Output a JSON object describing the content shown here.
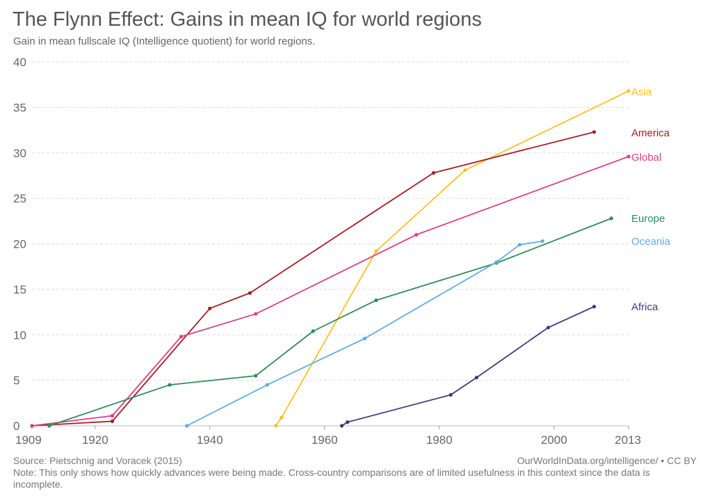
{
  "title": "The Flynn Effect: Gains in mean IQ for world regions",
  "subtitle": "Gain in mean fullscale IQ (Intelligence quotient) for world regions.",
  "footer": {
    "source": "Source: Pietschnig and Voracek (2015)",
    "url": "OurWorldInData.org/intelligence/ • CC BY",
    "note": "Note: This only shows how quickly advances were being made. Cross-country comparisons are of limited usefulness in this context since the data is incomplete."
  },
  "chart_data": {
    "type": "line",
    "title": "The Flynn Effect: Gains in mean IQ for world regions",
    "xlabel": "",
    "ylabel": "",
    "xlim": [
      1909,
      2013
    ],
    "ylim": [
      0,
      40
    ],
    "x_ticks": [
      "1909",
      "1920",
      "1940",
      "1960",
      "1980",
      "2000",
      "2013"
    ],
    "y_ticks": [
      "0",
      "5",
      "10",
      "15",
      "20",
      "25",
      "30",
      "35",
      "40"
    ],
    "x_tick_values": [
      1909,
      1920,
      1940,
      1960,
      1980,
      2000,
      2013
    ],
    "y_tick_values": [
      0,
      5,
      10,
      15,
      20,
      25,
      30,
      35,
      40
    ],
    "grid": "horizontal dashed",
    "legend": "inline labels at line ends (right)",
    "series": [
      {
        "name": "Asia",
        "color": "#f9c125",
        "points": [
          [
            1951.5,
            0
          ],
          [
            1952.5,
            0.9
          ],
          [
            1969,
            19.2
          ],
          [
            1984.5,
            28.1
          ],
          [
            2013,
            36.8
          ]
        ]
      },
      {
        "name": "America",
        "color": "#a81c22",
        "points": [
          [
            1909,
            0
          ],
          [
            1923,
            0.5
          ],
          [
            1940,
            12.9
          ],
          [
            1947,
            14.6
          ],
          [
            1979,
            27.8
          ],
          [
            2007,
            32.3
          ]
        ]
      },
      {
        "name": "Global",
        "color": "#de3e80",
        "points": [
          [
            1909,
            0
          ],
          [
            1923,
            1.1
          ],
          [
            1935,
            9.8
          ],
          [
            1948,
            12.3
          ],
          [
            1976,
            21
          ],
          [
            2013,
            29.6
          ]
        ]
      },
      {
        "name": "Europe",
        "color": "#2e8b57",
        "points": [
          [
            1912,
            0
          ],
          [
            1933,
            4.5
          ],
          [
            1948,
            5.5
          ],
          [
            1958,
            10.4
          ],
          [
            1969,
            13.8
          ],
          [
            1990,
            17.9
          ],
          [
            2010,
            22.8
          ]
        ]
      },
      {
        "name": "Oceania",
        "color": "#5dade2",
        "points": [
          [
            1936,
            0
          ],
          [
            1950,
            4.5
          ],
          [
            1967,
            9.6
          ],
          [
            1990,
            18
          ],
          [
            1994,
            19.9
          ],
          [
            1998,
            20.3
          ]
        ]
      },
      {
        "name": "Africa",
        "color": "#3b3a7e",
        "points": [
          [
            1963,
            0
          ],
          [
            1964,
            0.4
          ],
          [
            1982,
            3.4
          ],
          [
            1986.5,
            5.3
          ],
          [
            1999,
            10.8
          ],
          [
            2007,
            13.1
          ]
        ]
      }
    ]
  }
}
